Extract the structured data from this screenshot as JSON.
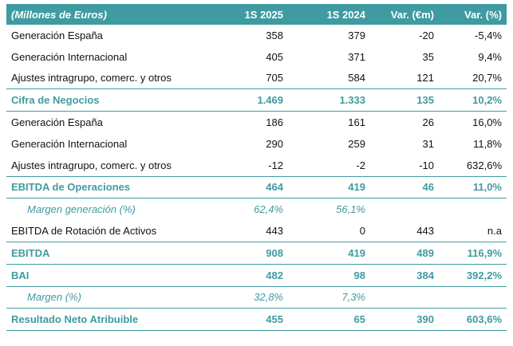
{
  "header": {
    "units": "(Millones de Euros)",
    "col1": "1S 2025",
    "col2": "1S 2024",
    "col3": "Var. (€m)",
    "col4": "Var. (%)"
  },
  "rows": [
    {
      "label": "Generación España",
      "v1": "358",
      "v2": "379",
      "v3": "-20",
      "v4": "-5,4%"
    },
    {
      "label": "Generación Internacional",
      "v1": "405",
      "v2": "371",
      "v3": "35",
      "v4": "9,4%"
    },
    {
      "label": "Ajustes intragrupo, comerc. y otros",
      "v1": "705",
      "v2": "584",
      "v3": "121",
      "v4": "20,7%"
    },
    {
      "label": "Cifra de Negocios",
      "v1": "1.469",
      "v2": "1.333",
      "v3": "135",
      "v4": "10,2%"
    },
    {
      "label": "Generación España",
      "v1": "186",
      "v2": "161",
      "v3": "26",
      "v4": "16,0%"
    },
    {
      "label": "Generación Internacional",
      "v1": "290",
      "v2": "259",
      "v3": "31",
      "v4": "11,8%"
    },
    {
      "label": "Ajustes intragrupo, comerc. y otros",
      "v1": "-12",
      "v2": "-2",
      "v3": "-10",
      "v4": "632,6%"
    },
    {
      "label": "EBITDA de Operaciones",
      "v1": "464",
      "v2": "419",
      "v3": "46",
      "v4": "11,0%"
    },
    {
      "label": "Margen generación (%)",
      "v1": "62,4%",
      "v2": "56,1%",
      "v3": "",
      "v4": ""
    },
    {
      "label": "EBITDA de Rotación de Activos",
      "v1": "443",
      "v2": "0",
      "v3": "443",
      "v4": "n.a"
    },
    {
      "label": "EBITDA",
      "v1": "908",
      "v2": "419",
      "v3": "489",
      "v4": "116,9%"
    },
    {
      "label": "BAI",
      "v1": "482",
      "v2": "98",
      "v3": "384",
      "v4": "392,2%"
    },
    {
      "label": "Margen (%)",
      "v1": "32,8%",
      "v2": "7,3%",
      "v3": "",
      "v4": ""
    },
    {
      "label": "Resultado Neto Atribuible",
      "v1": "455",
      "v2": "65",
      "v3": "390",
      "v4": "603,6%"
    }
  ]
}
